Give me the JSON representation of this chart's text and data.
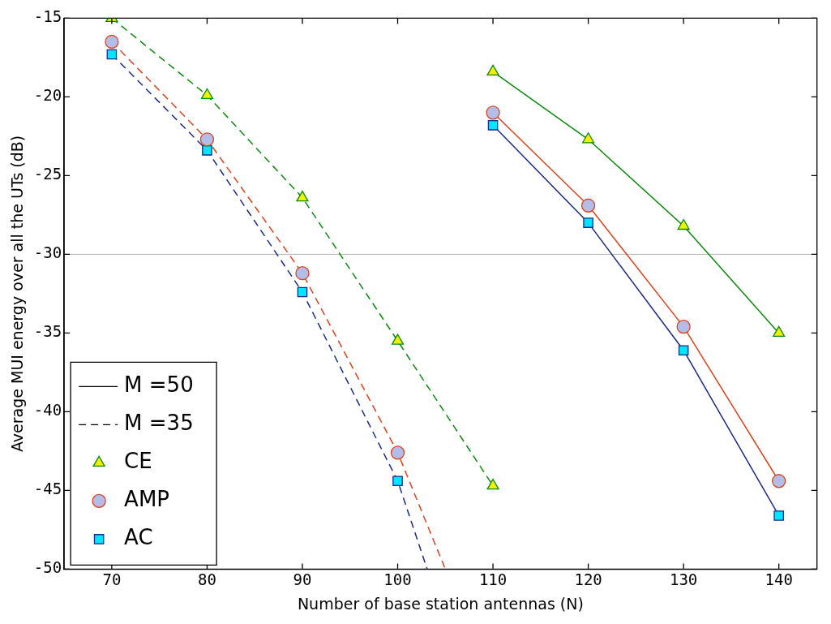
{
  "chart_data": {
    "type": "line",
    "xlabel": "Number of base station antennas (N)",
    "ylabel": "Average MUI energy over all the UTs (dB)",
    "xlim": [
      65,
      144
    ],
    "xticks": [
      70,
      80,
      90,
      100,
      110,
      120,
      130,
      140
    ],
    "ylim": [
      -50,
      -15
    ],
    "yticks": [
      -15,
      -20,
      -25,
      -30,
      -35,
      -40,
      -45,
      -50
    ],
    "grid": false,
    "legend": "bottom left",
    "ref_lines": [
      {
        "axis": "y",
        "value": -30,
        "color": "#b4b4b4"
      }
    ],
    "series": [
      {
        "name": "M =50",
        "color": "#000000",
        "line_style": "solid",
        "marker": "none"
      },
      {
        "name": "M =35",
        "color": "#000000",
        "line_style": "dashed",
        "marker": "none"
      },
      {
        "name": "CE",
        "color": "#0a8a0a",
        "colors": [
          "#f2f200",
          "#f2f200",
          "#f2f200",
          "#f2f200"
        ],
        "marker": "triangle",
        "line_style": "solid",
        "x": [
          110,
          120,
          130,
          140
        ],
        "values": [
          -18.4,
          -22.7,
          -28.2,
          -35.0
        ]
      },
      {
        "name": "AMP",
        "color": "#e0401a",
        "colors": [
          "#b4bde8",
          "#b4bde8",
          "#b4bde8",
          "#b4bde8"
        ],
        "marker": "circle",
        "line_style": "solid",
        "x": [
          110,
          120,
          130,
          140
        ],
        "values": [
          -21.0,
          -26.9,
          -34.6,
          -44.4
        ]
      },
      {
        "name": "AC",
        "color": "#1a2a8c",
        "colors": [
          "#00e5ff",
          "#00e5ff",
          "#00e5ff",
          "#00e5ff"
        ],
        "marker": "square",
        "line_style": "solid",
        "x": [
          110,
          120,
          130,
          140
        ],
        "values": [
          -21.8,
          -28.0,
          -36.1,
          -46.6
        ]
      },
      {
        "color": "#0a8a0a",
        "colors": [
          "#f2f200",
          "#f2f200",
          "#f2f200",
          "#f2f200",
          "#f2f200"
        ],
        "marker": "triangle",
        "line_style": "dashed",
        "x": [
          70,
          80,
          90,
          100,
          110
        ],
        "values": [
          -15.0,
          -19.9,
          -26.4,
          -35.5,
          -44.7
        ]
      },
      {
        "color": "#e0401a",
        "colors": [
          "#b4bde8",
          "#b4bde8",
          "#b4bde8",
          "#b4bde8",
          null
        ],
        "marker": "circle",
        "line_style": "dashed",
        "x": [
          70,
          80,
          90,
          100,
          105
        ],
        "values": [
          -16.5,
          -22.7,
          -31.2,
          -42.6,
          -50
        ]
      },
      {
        "color": "#1a2a8c",
        "colors": [
          "#00e5ff",
          "#00e5ff",
          "#00e5ff",
          "#00e5ff",
          null
        ],
        "marker": "square",
        "line_style": "dashed",
        "x": [
          70,
          80,
          90,
          100,
          103.1
        ],
        "values": [
          -17.3,
          -23.4,
          -32.4,
          -44.4,
          -50
        ]
      }
    ]
  }
}
